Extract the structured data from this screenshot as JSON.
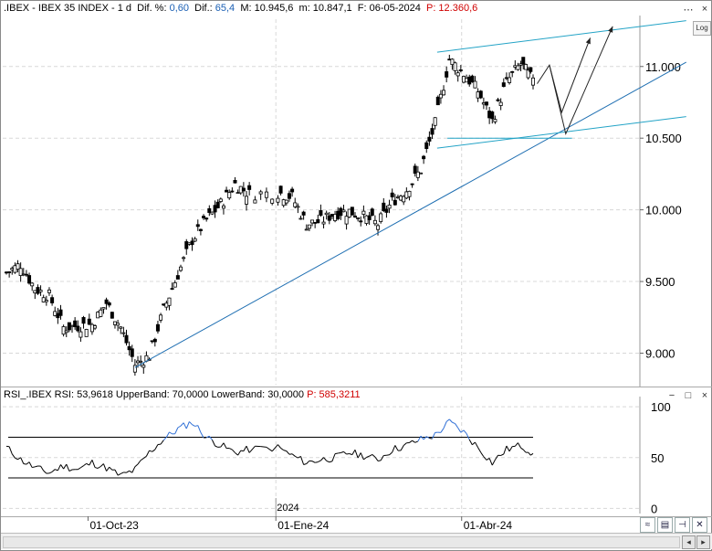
{
  "main_header": {
    "symbol": ".IBEX - IBEX 35 INDEX - 1 d",
    "dif_pct_label": "Dif. %:",
    "dif_pct_value": "0,60",
    "dif_label": "Dif.:",
    "dif_value": "65,4",
    "high_label": "M: 10.945,6",
    "low_label": "m: 10.847,1",
    "date_label": "F: 06-05-2024",
    "p_label": "P: 12.360,6"
  },
  "window_buttons": [
    "⋯",
    "×"
  ],
  "log_button": "Log",
  "rsi_header": {
    "symbol": "RSI_.IBEX",
    "rsi_label": "RSI: 53,9618",
    "upper_label": "UpperBand: 70,0000",
    "lower_label": "LowerBand: 30,0000",
    "p_label": "P: 585,3211"
  },
  "rsi_window_buttons": [
    "−",
    "□",
    "×"
  ],
  "x_axis": {
    "year_label": "2024",
    "ticks": [
      "01-Oct-23",
      "01-Ene-24",
      "01-Abr-24"
    ]
  },
  "toolbar_icons": [
    "chart-wave-icon",
    "save-icon",
    "pin-icon",
    "close-icon"
  ],
  "colors": {
    "up_candle": "#ffffff",
    "down_candle": "#000000",
    "trendline": "#1f6fb2",
    "channel": "#23a3c6",
    "rsi_line": "#000000",
    "rsi_overbought": "#2f6fd6",
    "price_label_red": "#d00000",
    "value_blue": "#1a5fb4"
  },
  "chart_data": [
    {
      "type": "candlestick",
      "title": ".IBEX - IBEX 35 INDEX - 1 d",
      "y_ticks": [
        "11.000",
        "10.500",
        "10.000",
        "9.500",
        "9.000"
      ],
      "y_tick_values": [
        11000,
        10500,
        10000,
        9500,
        9000
      ],
      "ylim": [
        8780,
        11330
      ],
      "x_range": [
        "2023-08-22",
        "2024-05-06"
      ],
      "grid": true,
      "close_series": [
        [
          "2023-08-22",
          9560
        ],
        [
          "2023-08-29",
          9620
        ],
        [
          "2023-09-05",
          9450
        ],
        [
          "2023-09-12",
          9400
        ],
        [
          "2023-09-19",
          9180
        ],
        [
          "2023-09-26",
          9190
        ],
        [
          "2023-10-03",
          9200
        ],
        [
          "2023-10-10",
          9350
        ],
        [
          "2023-10-17",
          9180
        ],
        [
          "2023-10-24",
          8920
        ],
        [
          "2023-10-31",
          8980
        ],
        [
          "2023-11-07",
          9300
        ],
        [
          "2023-11-14",
          9550
        ],
        [
          "2023-11-21",
          9790
        ],
        [
          "2023-11-28",
          9930
        ],
        [
          "2023-12-05",
          10040
        ],
        [
          "2023-12-12",
          10180
        ],
        [
          "2023-12-19",
          10110
        ],
        [
          "2024-01-02",
          10120
        ],
        [
          "2024-01-09",
          10090
        ],
        [
          "2024-01-16",
          9900
        ],
        [
          "2024-01-23",
          9920
        ],
        [
          "2024-01-30",
          9980
        ],
        [
          "2024-02-06",
          9990
        ],
        [
          "2024-02-13",
          9950
        ],
        [
          "2024-02-20",
          9900
        ],
        [
          "2024-02-27",
          10060
        ],
        [
          "2024-03-05",
          10140
        ],
        [
          "2024-03-12",
          10280
        ],
        [
          "2024-03-19",
          10600
        ],
        [
          "2024-03-26",
          11050
        ],
        [
          "2024-04-02",
          10950
        ],
        [
          "2024-04-09",
          10830
        ],
        [
          "2024-04-16",
          10620
        ],
        [
          "2024-04-23",
          10890
        ],
        [
          "2024-04-30",
          11020
        ],
        [
          "2024-05-06",
          10900
        ]
      ],
      "annotations": {
        "trendlines": "long-term uptrend line from Oct-23 low; rising channel lines",
        "arrows": "projected paths"
      }
    },
    {
      "type": "line",
      "title": "RSI_.IBEX",
      "y_ticks": [
        "100",
        "50",
        "0"
      ],
      "y_tick_values": [
        100,
        50,
        0
      ],
      "ylim": [
        -5,
        110
      ],
      "bands": {
        "upper": 70,
        "lower": 30
      },
      "series": [
        {
          "name": "RSI",
          "values": [
            60,
            48,
            40,
            35,
            42,
            38,
            45,
            40,
            32,
            38,
            55,
            68,
            78,
            85,
            70,
            62,
            55,
            58,
            60,
            52,
            45,
            48,
            50,
            55,
            52,
            48,
            58,
            62,
            68,
            72,
            85,
            75,
            60,
            45,
            58,
            62,
            54
          ]
        }
      ]
    }
  ]
}
